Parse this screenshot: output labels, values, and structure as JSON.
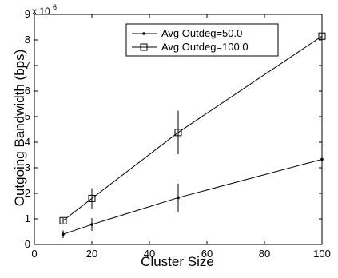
{
  "chart_data": {
    "type": "line",
    "title": "",
    "xlabel": "Cluster Size",
    "ylabel": "Outgoing Bandwidth (bps)",
    "y_multiplier_label": "x 10",
    "y_multiplier_exponent": "6",
    "xlim": [
      0,
      100
    ],
    "ylim": [
      0,
      9
    ],
    "y_unit_scale": 1000000,
    "xticks": [
      0,
      20,
      40,
      60,
      80,
      100
    ],
    "yticks": [
      0,
      1,
      2,
      3,
      4,
      5,
      6,
      7,
      8,
      9
    ],
    "grid": false,
    "legend_position": "top-center",
    "series": [
      {
        "name": "Avg Outdeg=50.0",
        "marker": "dot",
        "color": "#000000",
        "x": [
          10,
          20,
          50,
          100
        ],
        "y": [
          0.4,
          0.78,
          1.83,
          3.33
        ],
        "error": [
          0.15,
          0.25,
          0.55,
          0
        ]
      },
      {
        "name": "Avg Outdeg=100.0",
        "marker": "square",
        "color": "#000000",
        "x": [
          10,
          20,
          50,
          100
        ],
        "y": [
          0.93,
          1.8,
          4.38,
          8.15
        ],
        "error": [
          0.1,
          0.4,
          0.85,
          0
        ]
      }
    ]
  }
}
